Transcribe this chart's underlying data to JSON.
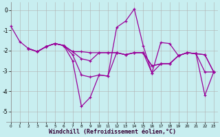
{
  "xlabel": "Windchill (Refroidissement éolien,°C)",
  "background_color": "#c8eef0",
  "grid_color": "#b0b0b0",
  "line_color": "#990099",
  "xlim": [
    -0.5,
    23.5
  ],
  "ylim": [
    -5.5,
    0.4
  ],
  "yticks": [
    0,
    -1,
    -2,
    -3,
    -4,
    -5
  ],
  "xticks": [
    0,
    1,
    2,
    3,
    4,
    5,
    6,
    7,
    8,
    9,
    10,
    11,
    12,
    13,
    14,
    15,
    16,
    17,
    18,
    19,
    20,
    21,
    22,
    23
  ],
  "lines": [
    [
      [
        0,
        -0.8
      ],
      [
        1,
        -1.55
      ],
      [
        2,
        -1.9
      ],
      [
        3,
        -2.05
      ],
      [
        4,
        -1.8
      ],
      [
        5,
        -1.65
      ],
      [
        6,
        -1.75
      ],
      [
        7,
        -2.5
      ],
      [
        8,
        -4.75
      ],
      [
        9,
        -4.3
      ],
      [
        10,
        -3.2
      ],
      [
        11,
        -3.25
      ],
      [
        12,
        -0.85
      ],
      [
        13,
        -0.55
      ],
      [
        14,
        0.05
      ],
      [
        15,
        -1.75
      ],
      [
        16,
        -3.1
      ],
      [
        17,
        -1.6
      ],
      [
        18,
        -1.65
      ],
      [
        19,
        -2.25
      ],
      [
        20,
        -2.1
      ],
      [
        21,
        -2.15
      ],
      [
        22,
        -4.2
      ],
      [
        23,
        -3.05
      ]
    ],
    [
      [
        2,
        -1.9
      ],
      [
        3,
        -2.05
      ],
      [
        4,
        -1.8
      ],
      [
        5,
        -1.65
      ],
      [
        6,
        -1.75
      ],
      [
        7,
        -2.2
      ],
      [
        8,
        -3.2
      ],
      [
        9,
        -3.3
      ],
      [
        10,
        -3.2
      ],
      [
        11,
        -3.25
      ],
      [
        12,
        -2.1
      ],
      [
        13,
        -2.2
      ],
      [
        14,
        -2.1
      ],
      [
        15,
        -2.1
      ],
      [
        16,
        -3.1
      ],
      [
        17,
        -2.65
      ],
      [
        18,
        -2.65
      ],
      [
        19,
        -2.25
      ],
      [
        20,
        -2.1
      ],
      [
        21,
        -2.15
      ],
      [
        22,
        -3.05
      ],
      [
        23,
        -3.05
      ]
    ],
    [
      [
        2,
        -1.9
      ],
      [
        3,
        -2.05
      ],
      [
        4,
        -1.8
      ],
      [
        5,
        -1.65
      ],
      [
        6,
        -1.75
      ],
      [
        7,
        -2.05
      ],
      [
        8,
        -2.4
      ],
      [
        9,
        -2.5
      ],
      [
        10,
        -2.1
      ],
      [
        11,
        -2.1
      ],
      [
        12,
        -2.1
      ],
      [
        13,
        -2.2
      ],
      [
        14,
        -2.1
      ],
      [
        15,
        -2.1
      ],
      [
        16,
        -2.75
      ],
      [
        17,
        -2.65
      ],
      [
        18,
        -2.65
      ],
      [
        19,
        -2.25
      ],
      [
        20,
        -2.1
      ],
      [
        21,
        -2.15
      ],
      [
        22,
        -2.2
      ],
      [
        23,
        -3.05
      ]
    ],
    [
      [
        2,
        -1.9
      ],
      [
        3,
        -2.05
      ],
      [
        4,
        -1.8
      ],
      [
        5,
        -1.65
      ],
      [
        6,
        -1.75
      ],
      [
        7,
        -2.05
      ],
      [
        8,
        -2.05
      ],
      [
        9,
        -2.1
      ],
      [
        10,
        -2.1
      ],
      [
        11,
        -2.1
      ],
      [
        12,
        -2.1
      ],
      [
        13,
        -2.2
      ],
      [
        14,
        -2.1
      ],
      [
        15,
        -2.1
      ],
      [
        16,
        -2.75
      ],
      [
        17,
        -2.65
      ],
      [
        18,
        -2.65
      ],
      [
        19,
        -2.25
      ],
      [
        20,
        -2.1
      ],
      [
        21,
        -2.15
      ],
      [
        22,
        -2.2
      ],
      [
        23,
        -3.05
      ]
    ]
  ]
}
